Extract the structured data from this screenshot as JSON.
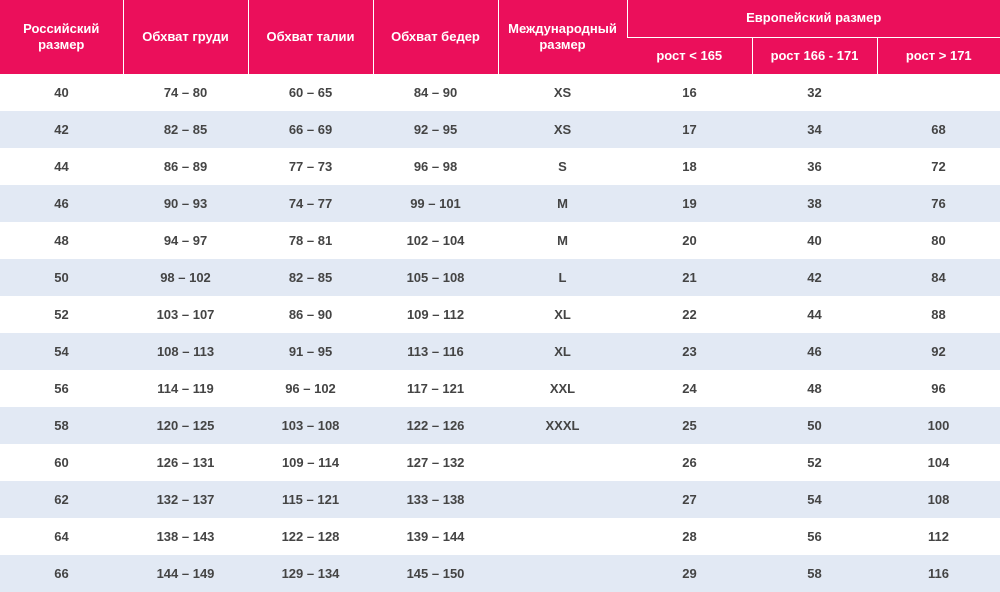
{
  "header": {
    "columns": [
      "Российский размер",
      "Обхват груди",
      "Обхват талии",
      "Обхват бедер",
      "Международный размер"
    ],
    "group": "Европейский размер",
    "subcolumns": [
      "рост < 165",
      "рост 166 - 171",
      "рост > 171"
    ]
  },
  "table": {
    "rows": [
      [
        "40",
        "74 – 80",
        "60 – 65",
        "84 – 90",
        "XS",
        "16",
        "32",
        null
      ],
      [
        "42",
        "82 – 85",
        "66 – 69",
        "92 – 95",
        "XS",
        "17",
        "34",
        "68"
      ],
      [
        "44",
        "86 – 89",
        "77 – 73",
        "96 – 98",
        "S",
        "18",
        "36",
        "72"
      ],
      [
        "46",
        "90 – 93",
        "74 – 77",
        "99 – 101",
        "M",
        "19",
        "38",
        "76"
      ],
      [
        "48",
        "94 – 97",
        "78 – 81",
        "102 – 104",
        "M",
        "20",
        "40",
        "80"
      ],
      [
        "50",
        "98 – 102",
        "82 – 85",
        "105 – 108",
        "L",
        "21",
        "42",
        "84"
      ],
      [
        "52",
        "103 – 107",
        "86 – 90",
        "109 – 112",
        "XL",
        "22",
        "44",
        "88"
      ],
      [
        "54",
        "108 – 113",
        "91 – 95",
        "113 – 116",
        "XL",
        "23",
        "46",
        "92"
      ],
      [
        "56",
        "114 – 119",
        "96 – 102",
        "117 – 121",
        "XXL",
        "24",
        "48",
        "96"
      ],
      [
        "58",
        "120 – 125",
        "103 – 108",
        "122 – 126",
        "XXXL",
        "25",
        "50",
        "100"
      ],
      [
        "60",
        "126 – 131",
        "109 – 114",
        "127 – 132",
        null,
        "26",
        "52",
        "104"
      ],
      [
        "62",
        "132 – 137",
        "115 – 121",
        "133 – 138",
        null,
        "27",
        "54",
        "108"
      ],
      [
        "64",
        "138 – 143",
        "122 – 128",
        "139 – 144",
        null,
        "28",
        "56",
        "112"
      ],
      [
        "66",
        "144 – 149",
        "129 – 134",
        "145 – 150",
        null,
        "29",
        "58",
        "116"
      ]
    ]
  }
}
